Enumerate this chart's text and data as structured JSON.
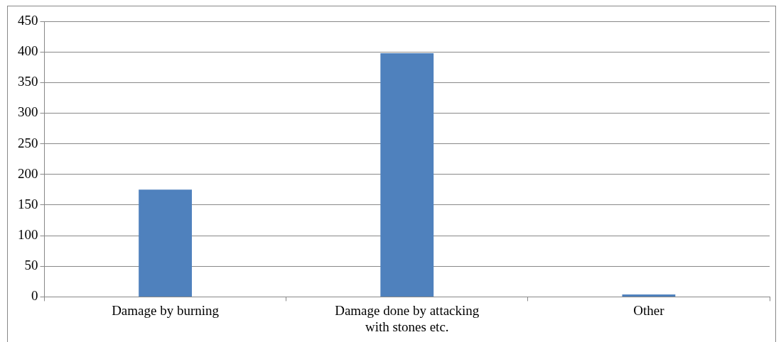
{
  "chart_data": {
    "type": "bar",
    "categories": [
      "Damage by burning",
      "Damage done by attacking with stones etc.",
      "Other"
    ],
    "values": [
      175,
      398,
      4
    ],
    "color": "#4f81bd",
    "ylim": [
      0,
      450
    ],
    "yticks": [
      0,
      50,
      100,
      150,
      200,
      250,
      300,
      350,
      400,
      450
    ],
    "grid": "y"
  }
}
